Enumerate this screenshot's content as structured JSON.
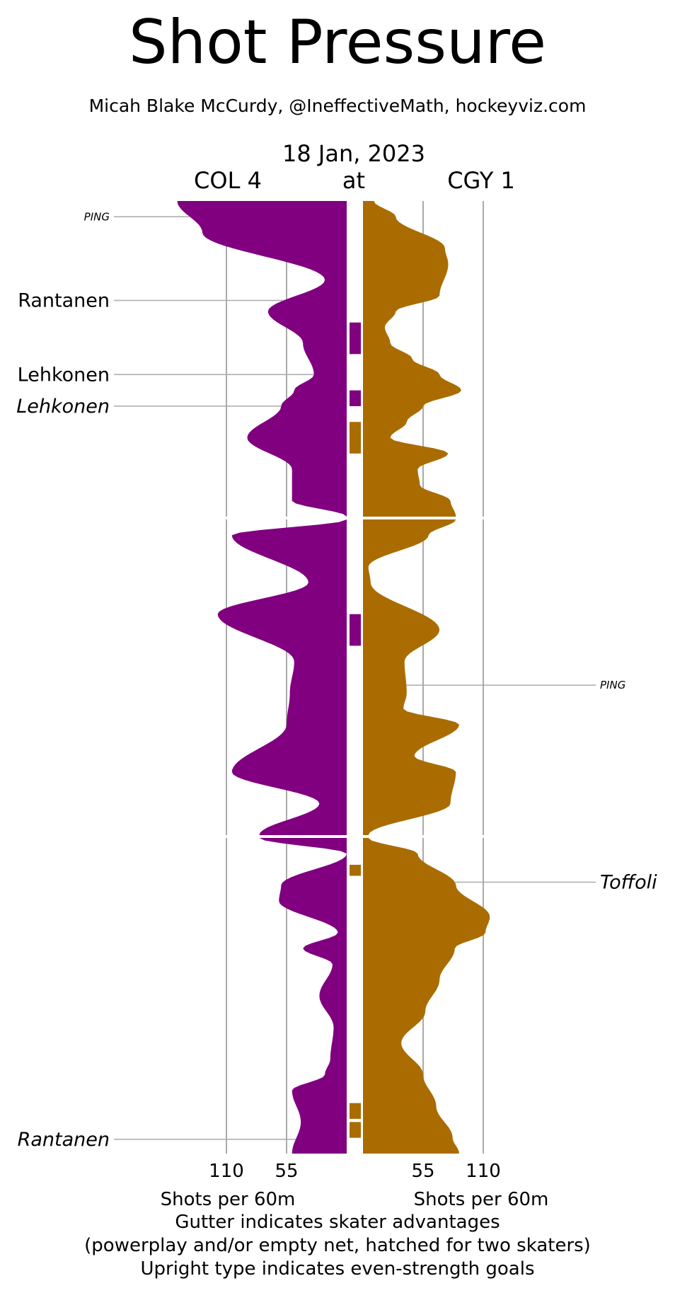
{
  "title": "Shot Pressure",
  "byline": "Micah Blake McCurdy, @IneffectiveMath, hockeyviz.com",
  "date": "18 Jan, 2023",
  "teams": {
    "away": "COL 4",
    "at": "at",
    "home": "CGY 1"
  },
  "colors": {
    "away": "#800080",
    "home": "#aa6c00",
    "grid": "#aaaaaa"
  },
  "footer": {
    "xlabel_away": "Shots per 60m",
    "xlabel_home": "Shots per 60m",
    "note1": "Gutter indicates skater advantages",
    "note2": "(powerplay and/or empty net, hatched for two skaters)",
    "note3": "Upright type indicates even-strength goals"
  },
  "chart_data": {
    "type": "area",
    "orientation": "mirrored-horizontal",
    "periods": 3,
    "period_length_min": 20,
    "xticks": [
      55,
      110
    ],
    "xtick_labels": [
      "55",
      "110"
    ],
    "xlim": [
      0,
      160
    ],
    "series": [
      {
        "name": "COL",
        "t": [
          0,
          2,
          5,
          7,
          9,
          11,
          12,
          13,
          15,
          17,
          19,
          20,
          21,
          24,
          26,
          29,
          31,
          33,
          36,
          38,
          40,
          41,
          43,
          44,
          46,
          47,
          48,
          50,
          52,
          54,
          55,
          56,
          58,
          60
        ],
        "values": [
          155,
          132,
          20,
          72,
          40,
          30,
          48,
          60,
          91,
          50,
          50,
          0,
          105,
          35,
          118,
          48,
          52,
          55,
          105,
          25,
          80,
          0,
          60,
          62,
          8,
          40,
          13,
          25,
          12,
          15,
          20,
          50,
          42,
          50
        ]
      },
      {
        "name": "CGY",
        "t": [
          0,
          1,
          3,
          4,
          6,
          7,
          8,
          9,
          10,
          11,
          12,
          13,
          14,
          15,
          16,
          17,
          18,
          19,
          20,
          21,
          23,
          24,
          27,
          29,
          31,
          32,
          33,
          35,
          36,
          38,
          40,
          41,
          43,
          45,
          46,
          47,
          49,
          51,
          53,
          55,
          57,
          59,
          60
        ],
        "values": [
          10,
          30,
          75,
          78,
          70,
          30,
          20,
          25,
          45,
          70,
          90,
          55,
          40,
          25,
          78,
          50,
          52,
          80,
          85,
          60,
          5,
          7,
          70,
          38,
          40,
          37,
          88,
          47,
          85,
          80,
          5,
          50,
          85,
          116,
          112,
          84,
          70,
          57,
          35,
          55,
          67,
          82,
          88
        ]
      }
    ],
    "advantages": [
      {
        "team": "COL",
        "start": 7.7,
        "end": 9.7
      },
      {
        "team": "COL",
        "start": 12.0,
        "end": 13.0
      },
      {
        "team": "CGY",
        "start": 14.0,
        "end": 16.0
      },
      {
        "team": "COL",
        "start": 26.0,
        "end": 28.0
      },
      {
        "team": "CGY",
        "start": 41.7,
        "end": 42.4
      },
      {
        "team": "CGY",
        "start": 56.8,
        "end": 57.8
      },
      {
        "team": "CGY",
        "start": 58.0,
        "end": 59.0
      }
    ],
    "goals": [
      {
        "team": "COL",
        "t": 1.0,
        "label": "PING",
        "strength": "even",
        "small": true
      },
      {
        "team": "COL",
        "t": 6.3,
        "label": "Rantanen",
        "strength": "even"
      },
      {
        "team": "COL",
        "t": 11.0,
        "label": "Lehkonen",
        "strength": "even"
      },
      {
        "team": "COL",
        "t": 13.0,
        "label": "Lehkonen",
        "strength": "special"
      },
      {
        "team": "CGY",
        "t": 30.5,
        "label": "PING",
        "strength": "even",
        "small": true
      },
      {
        "team": "CGY",
        "t": 42.8,
        "label": "Toffoli",
        "strength": "special"
      },
      {
        "team": "COL",
        "t": 59.1,
        "label": "Rantanen",
        "strength": "special"
      }
    ]
  }
}
